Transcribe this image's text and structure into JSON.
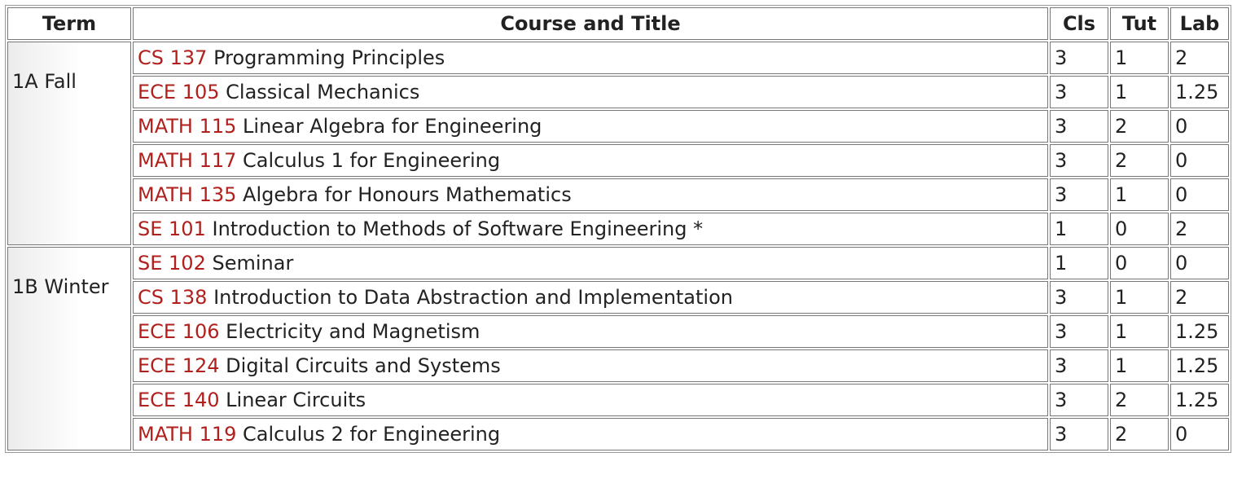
{
  "table": {
    "header": [
      "Term",
      "Course and Title",
      "Cls",
      "Tut",
      "Lab"
    ],
    "groups": [
      {
        "term": "1A Fall",
        "courses": [
          {
            "code": "CS 137",
            "title": "Programming Principles",
            "cls": "3",
            "tut": "1",
            "lab": "2"
          },
          {
            "code": "ECE 105",
            "title": "Classical Mechanics",
            "cls": "3",
            "tut": "1",
            "lab": "1.25"
          },
          {
            "code": "MATH 115",
            "title": "Linear Algebra for Engineering",
            "cls": "3",
            "tut": "2",
            "lab": "0"
          },
          {
            "code": "MATH 117",
            "title": "Calculus 1 for Engineering",
            "cls": "3",
            "tut": "2",
            "lab": "0"
          },
          {
            "code": "MATH 135",
            "title": "Algebra for Honours Mathematics",
            "cls": "3",
            "tut": "1",
            "lab": "0"
          },
          {
            "code": "SE 101",
            "title": "Introduction to Methods of Software Engineering *",
            "cls": "1",
            "tut": "0",
            "lab": "2"
          }
        ]
      },
      {
        "term": "1B Winter",
        "courses": [
          {
            "code": "SE 102",
            "title": "Seminar",
            "cls": "1",
            "tut": "0",
            "lab": "0"
          },
          {
            "code": "CS 138",
            "title": "Introduction to Data Abstraction and Implementation",
            "cls": "3",
            "tut": "1",
            "lab": "2"
          },
          {
            "code": "ECE 106",
            "title": "Electricity and Magnetism",
            "cls": "3",
            "tut": "1",
            "lab": "1.25"
          },
          {
            "code": "ECE 124",
            "title": "Digital Circuits and Systems",
            "cls": "3",
            "tut": "1",
            "lab": "1.25"
          },
          {
            "code": "ECE 140",
            "title": "Linear Circuits",
            "cls": "3",
            "tut": "2",
            "lab": "1.25"
          },
          {
            "code": "MATH 119",
            "title": "Calculus 2 for Engineering",
            "cls": "3",
            "tut": "2",
            "lab": "0"
          }
        ]
      }
    ]
  }
}
